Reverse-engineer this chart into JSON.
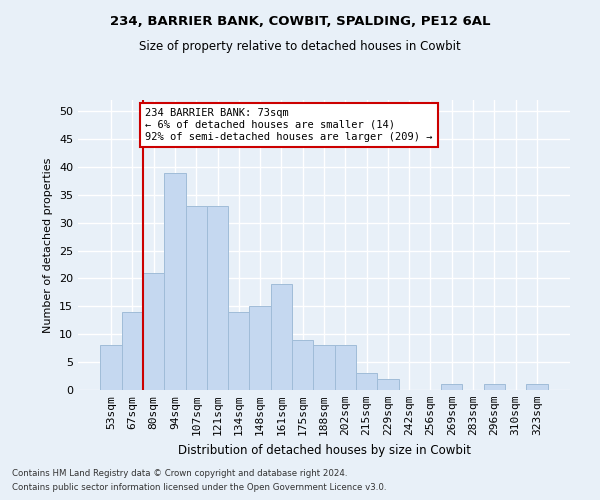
{
  "title1": "234, BARRIER BANK, COWBIT, SPALDING, PE12 6AL",
  "title2": "Size of property relative to detached houses in Cowbit",
  "xlabel": "Distribution of detached houses by size in Cowbit",
  "ylabel": "Number of detached properties",
  "categories": [
    "53sqm",
    "67sqm",
    "80sqm",
    "94sqm",
    "107sqm",
    "121sqm",
    "134sqm",
    "148sqm",
    "161sqm",
    "175sqm",
    "188sqm",
    "202sqm",
    "215sqm",
    "229sqm",
    "242sqm",
    "256sqm",
    "269sqm",
    "283sqm",
    "296sqm",
    "310sqm",
    "323sqm"
  ],
  "values": [
    8,
    14,
    21,
    39,
    33,
    33,
    14,
    15,
    19,
    9,
    8,
    8,
    3,
    2,
    0,
    0,
    1,
    0,
    1,
    0,
    1
  ],
  "bar_color": "#c5d8f0",
  "bar_edge_color": "#a0bcd8",
  "background_color": "#e8f0f8",
  "grid_color": "#ffffff",
  "annotation_text": "234 BARRIER BANK: 73sqm\n← 6% of detached houses are smaller (14)\n92% of semi-detached houses are larger (209) →",
  "annotation_box_color": "#ffffff",
  "annotation_box_edge_color": "#cc0000",
  "vline_x": 1.5,
  "vline_color": "#cc0000",
  "ylim": [
    0,
    52
  ],
  "yticks": [
    0,
    5,
    10,
    15,
    20,
    25,
    30,
    35,
    40,
    45,
    50
  ],
  "footnote1": "Contains HM Land Registry data © Crown copyright and database right 2024.",
  "footnote2": "Contains public sector information licensed under the Open Government Licence v3.0.",
  "fig_width": 6.0,
  "fig_height": 5.0,
  "dpi": 100
}
